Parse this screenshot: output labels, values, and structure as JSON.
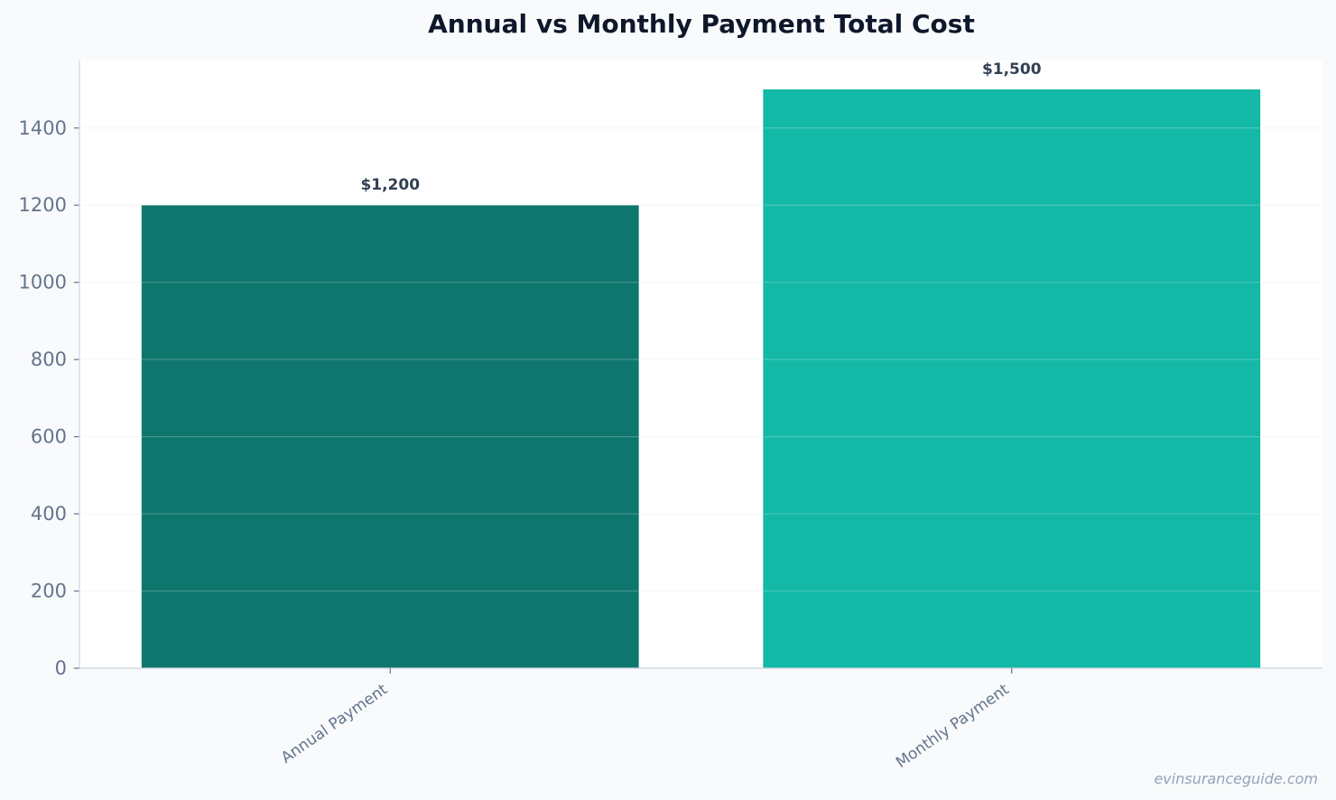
{
  "chart_data": {
    "type": "bar",
    "title": "Annual vs Monthly Payment Total Cost",
    "xlabel": "",
    "ylabel": "",
    "categories": [
      "Annual Payment",
      "Monthly Payment"
    ],
    "values": [
      1200,
      1500
    ],
    "data_labels": [
      "$1,200",
      "$1,500"
    ],
    "bar_colors": [
      "#0f766e",
      "#14b8a6"
    ],
    "ylim": [
      0,
      1575
    ],
    "yticks": [
      0,
      200,
      400,
      600,
      800,
      1000,
      1200,
      1400
    ],
    "grid": true,
    "legend": "none"
  },
  "watermark": "evinsuranceguide.com",
  "colors": {
    "background": "#f8fafc",
    "plot_background": "#ffffff",
    "title": "#0f172a",
    "tick_label": "#64748b",
    "data_label": "#334155",
    "axis": "#cbd5e1",
    "gridline": "#e2e8f0"
  }
}
